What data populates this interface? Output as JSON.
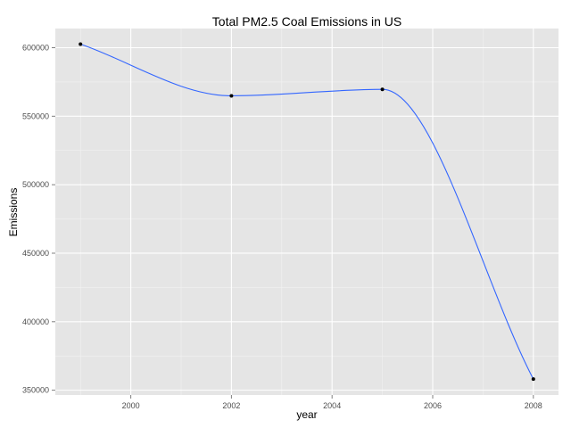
{
  "chart_data": {
    "type": "line",
    "title": "Total PM2.5 Coal Emissions in US",
    "xlabel": "year",
    "ylabel": "Emissions",
    "x": [
      1999,
      2002,
      2005,
      2008
    ],
    "values": [
      602600,
      564900,
      569600,
      358100
    ],
    "xlim": [
      1998.5,
      2008.5
    ],
    "ylim": [
      346500,
      614000
    ],
    "xticks": [
      2000,
      2002,
      2004,
      2006,
      2008
    ],
    "yticks": [
      350000,
      400000,
      450000,
      500000,
      550000,
      600000
    ],
    "xtick_labels": [
      "2000",
      "2002",
      "2004",
      "2006",
      "2008"
    ],
    "ytick_labels": [
      "350000",
      "400000",
      "450000",
      "500000",
      "550000",
      "600000"
    ],
    "grid": true,
    "smooth": true,
    "colors": {
      "panel": "#e5e5e5",
      "grid_major": "#ffffff",
      "grid_minor": "#f2f2f2",
      "line": "#3366ff",
      "point": "#000000",
      "tick": "#7f7f7f"
    }
  }
}
